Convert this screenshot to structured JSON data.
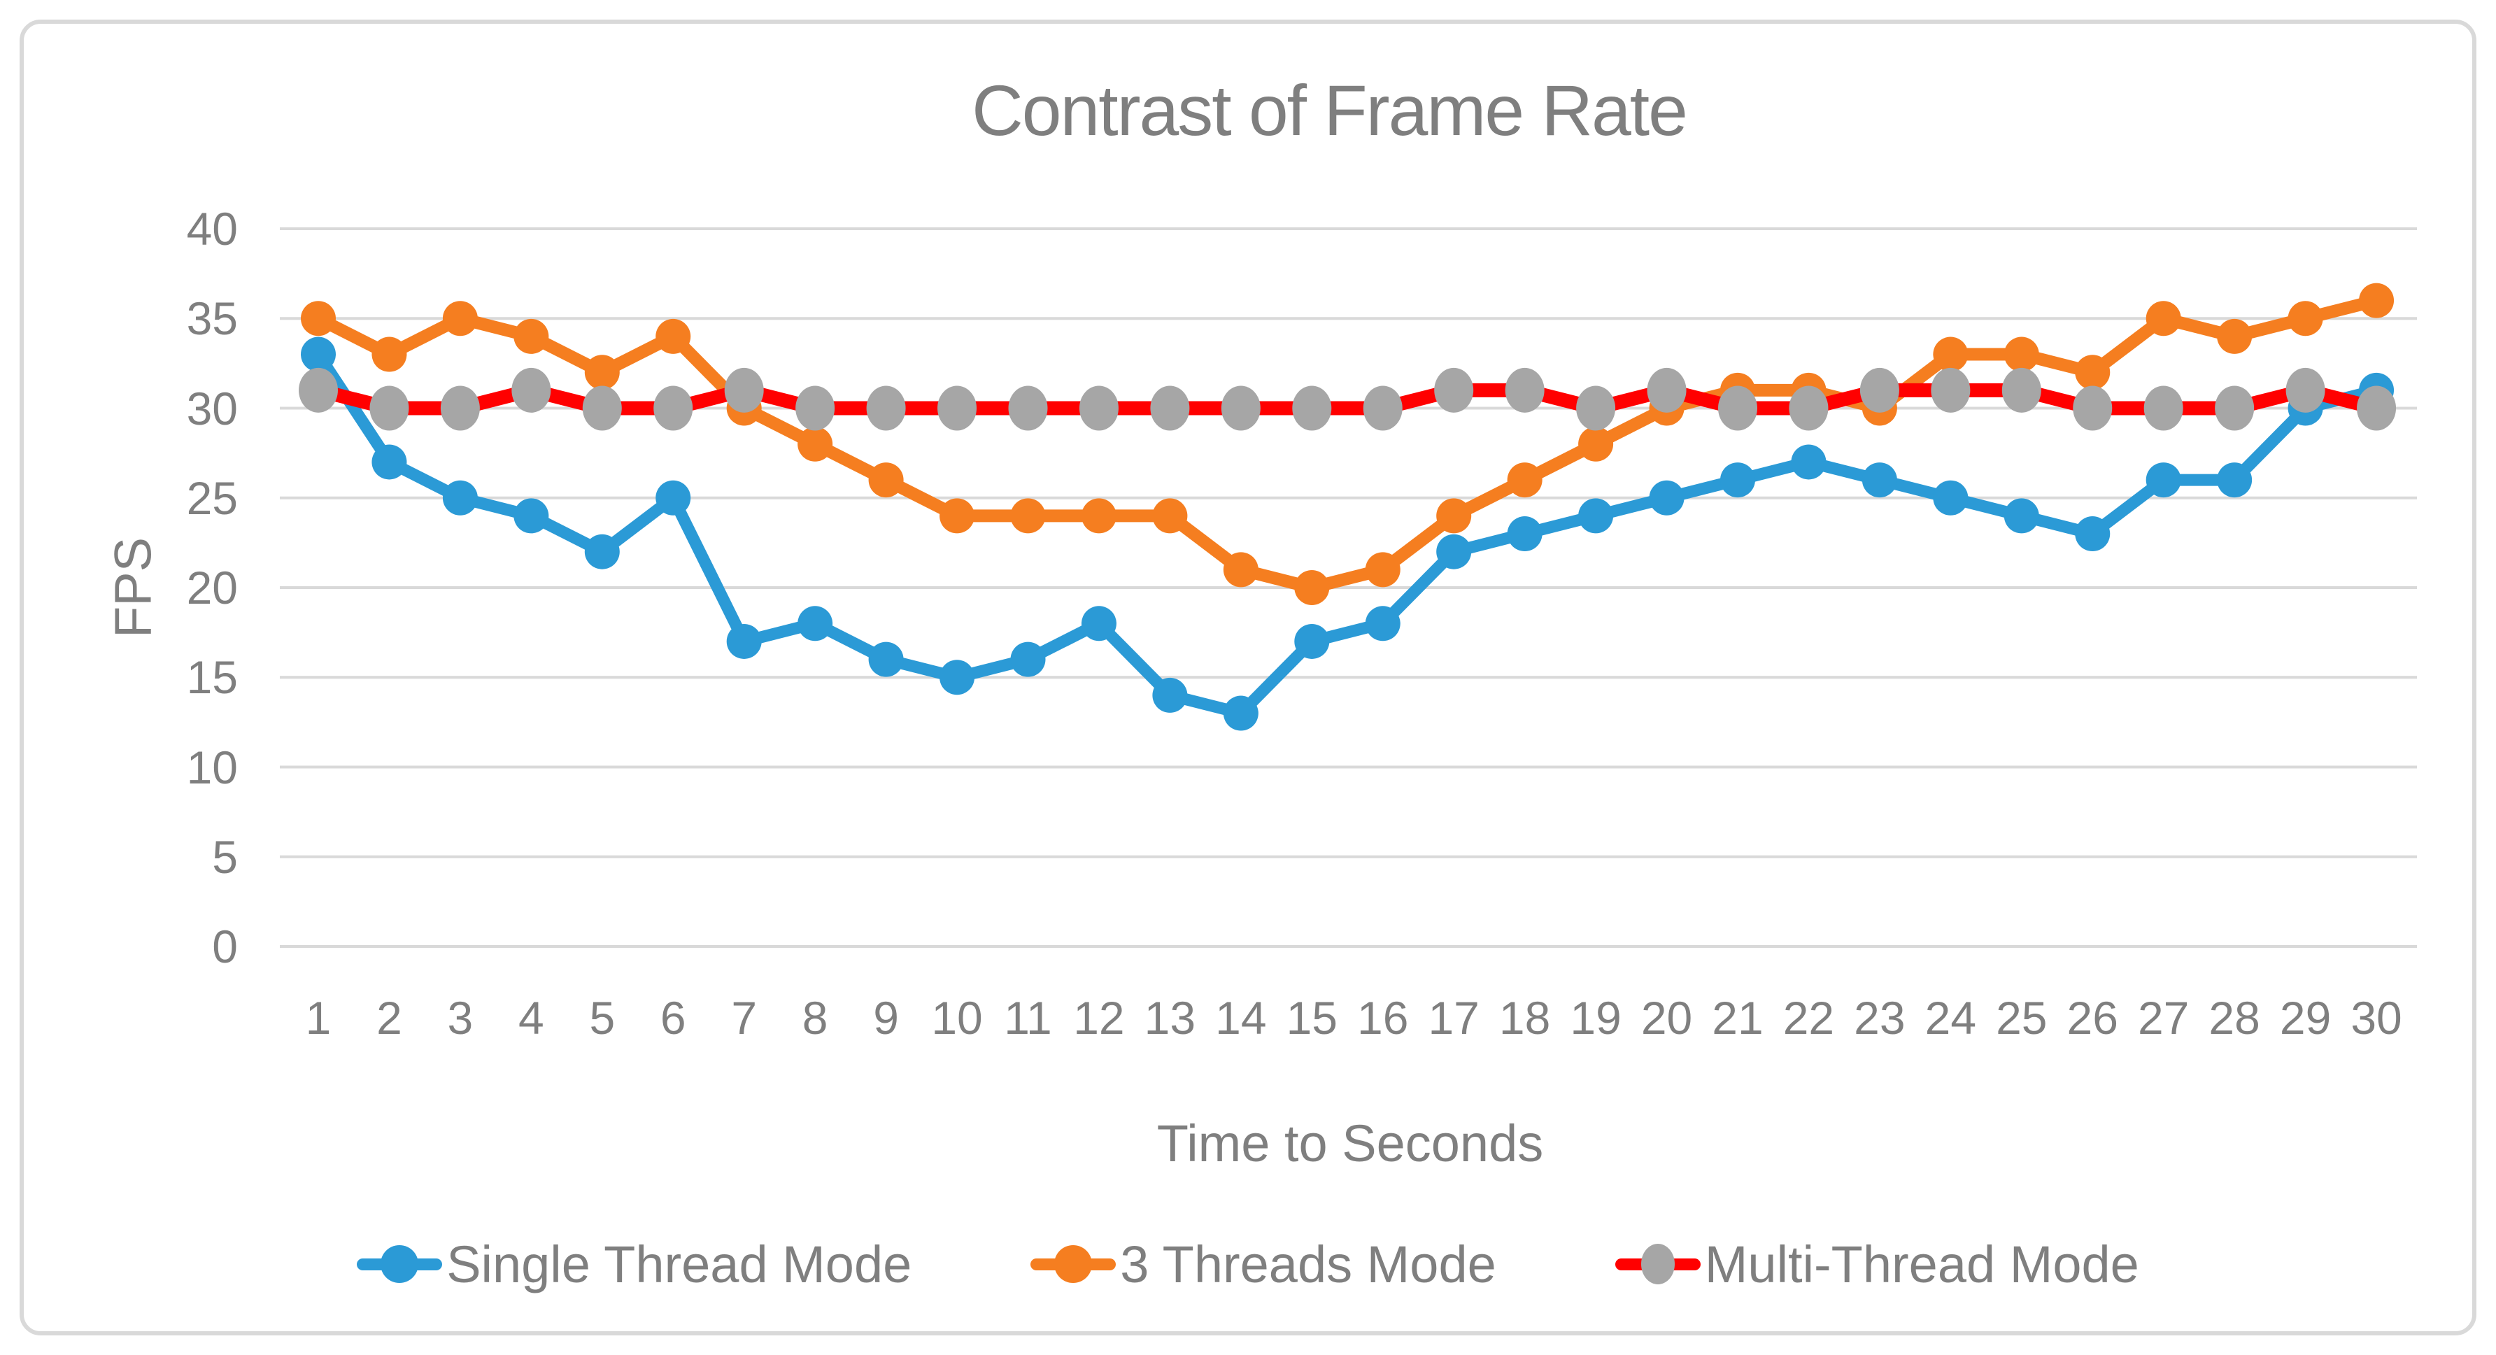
{
  "frame": {
    "background": "#FFFFFF",
    "border_color": "#D9D9D9"
  },
  "chart_data": {
    "type": "line",
    "title": "Contrast of Frame Rate",
    "xlabel": "Time to Seconds",
    "ylabel": "FPS",
    "x": [
      1,
      2,
      3,
      4,
      5,
      6,
      7,
      8,
      9,
      10,
      11,
      12,
      13,
      14,
      15,
      16,
      17,
      18,
      19,
      20,
      21,
      22,
      23,
      24,
      25,
      26,
      27,
      28,
      29,
      30
    ],
    "yticks": [
      0,
      5,
      10,
      15,
      20,
      25,
      30,
      35,
      40
    ],
    "ylim": [
      0,
      40
    ],
    "grid": true,
    "legend_position": "bottom",
    "text_color": "#7F7F7F",
    "gridline_color": "#D9D9D9",
    "series": [
      {
        "name": "Single Thread Mode",
        "line_color": "#2B9AD6",
        "marker_color": "#2B9AD6",
        "marker": "circle",
        "values": [
          33,
          27,
          25,
          24,
          22,
          25,
          17,
          18,
          16,
          15,
          16,
          18,
          14,
          13,
          17,
          18,
          22,
          23,
          24,
          25,
          26,
          27,
          26,
          25,
          24,
          23,
          26,
          26,
          30,
          31
        ]
      },
      {
        "name": "3 Threads Mode",
        "line_color": "#F57E20",
        "marker_color": "#F57E20",
        "marker": "circle",
        "values": [
          35,
          33,
          35,
          34,
          32,
          34,
          30,
          28,
          26,
          24,
          24,
          24,
          24,
          21,
          20,
          21,
          24,
          26,
          28,
          30,
          31,
          31,
          30,
          33,
          33,
          32,
          35,
          34,
          35,
          36
        ]
      },
      {
        "name": "Multi-Thread Mode",
        "line_color": "#FF0000",
        "marker_color": "#A6A6A6",
        "marker": "ellipse",
        "values": [
          31,
          30,
          30,
          31,
          30,
          30,
          31,
          30,
          30,
          30,
          30,
          30,
          30,
          30,
          30,
          30,
          31,
          31,
          30,
          31,
          30,
          30,
          31,
          31,
          31,
          30,
          30,
          30,
          31,
          30
        ]
      }
    ]
  }
}
